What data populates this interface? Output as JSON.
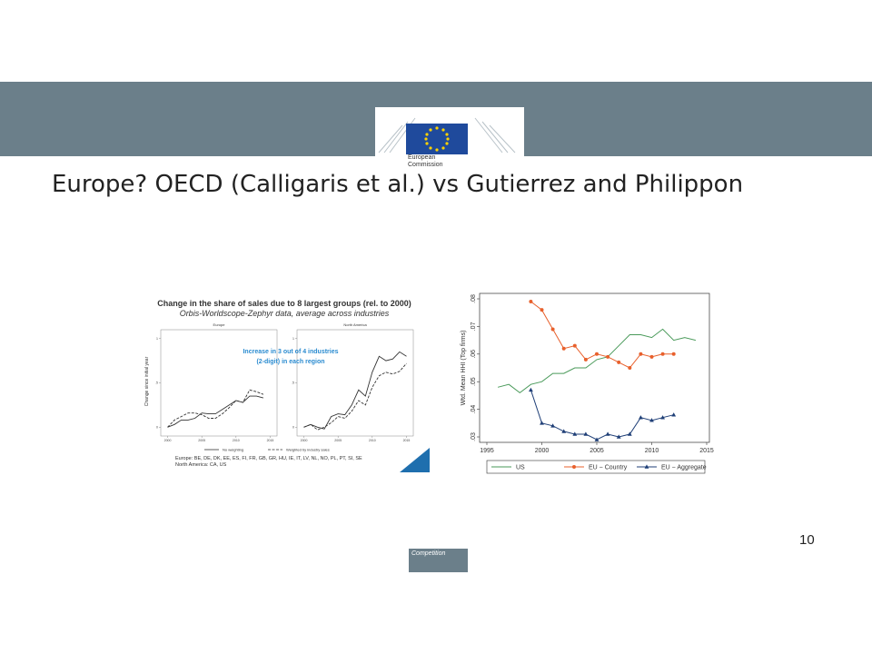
{
  "header": {
    "logo_text": "European Commission"
  },
  "title": "Europe? OECD (Calligaris et al.) vs Gutierrez and Philippon",
  "page_number": "10",
  "footer_tab": "Competition",
  "chart_data": [
    {
      "type": "line",
      "title": "Change in the share of sales due to 8 largest groups (rel. to 2000)",
      "subtitle": "Orbis-Worldscope-Zephyr data, average across industries",
      "y_label": "Change since initial year",
      "annotation": [
        "Increase in 3 out of 4 industries",
        "(2-digit) in each region"
      ],
      "xlim": [
        1999,
        2016
      ],
      "ylim": [
        -0.1,
        1.1
      ],
      "xticks": [
        2000,
        2005,
        2010,
        2015
      ],
      "yticks": [
        0,
        {
          "value": 0.5,
          "label": ".5"
        },
        1
      ],
      "legend": [
        {
          "name": "No weighting",
          "dash": false
        },
        {
          "name": "Weighted by industry sales",
          "dash": true
        }
      ],
      "color": "#333333",
      "panels": [
        {
          "title": "Europe",
          "x": [
            2000,
            2001,
            2002,
            2003,
            2004,
            2005,
            2006,
            2007,
            2008,
            2009,
            2010,
            2011,
            2012,
            2013,
            2014
          ],
          "series": [
            {
              "values": [
                0,
                0.03,
                0.08,
                0.08,
                0.1,
                0.16,
                0.15,
                0.15,
                0.2,
                0.25,
                0.3,
                0.28,
                0.35,
                0.35,
                0.33
              ]
            },
            {
              "values": [
                0,
                0.08,
                0.12,
                0.16,
                0.16,
                0.14,
                0.1,
                0.1,
                0.15,
                0.22,
                0.3,
                0.28,
                0.42,
                0.4,
                0.37
              ]
            }
          ]
        },
        {
          "title": "North America",
          "x": [
            2000,
            2001,
            2002,
            2003,
            2004,
            2005,
            2006,
            2007,
            2008,
            2009,
            2010,
            2011,
            2012,
            2013,
            2014,
            2015
          ],
          "series": [
            {
              "values": [
                0,
                0.03,
                0,
                -0.02,
                0.12,
                0.15,
                0.14,
                0.25,
                0.42,
                0.35,
                0.62,
                0.8,
                0.75,
                0.77,
                0.85,
                0.8
              ]
            },
            {
              "values": [
                0,
                0.03,
                -0.03,
                0,
                0.05,
                0.12,
                0.1,
                0.18,
                0.3,
                0.25,
                0.45,
                0.58,
                0.62,
                0.6,
                0.63,
                0.72
              ]
            }
          ]
        }
      ],
      "notes": [
        "Europe: BE, DE, DK, EE, ES, FI, FR, GB, GR, HU, IE, IT, LV, NL, NO, PL, PT, SI, SE",
        "North America: CA, US"
      ]
    },
    {
      "type": "line",
      "y_label": "Wtd. Mean HHI (Top firms)",
      "xlim": [
        1995,
        2015
      ],
      "ylim": [
        0.03,
        0.08
      ],
      "xticks": [
        1995,
        2000,
        2005,
        2010,
        2015
      ],
      "yticks": [
        {
          "value": 0.03,
          "label": ".03"
        },
        {
          "value": 0.04,
          "label": ".04"
        },
        {
          "value": 0.05,
          "label": ".05"
        },
        {
          "value": 0.06,
          "label": ".06"
        },
        {
          "value": 0.07,
          "label": ".07"
        },
        {
          "value": 0.08,
          "label": ".08"
        }
      ],
      "series": [
        {
          "name": "US",
          "color": "#4a9a5a",
          "marker": "none",
          "x": [
            1996,
            1997,
            1998,
            1999,
            2000,
            2001,
            2002,
            2003,
            2004,
            2005,
            2006,
            2007,
            2008,
            2009,
            2010,
            2011,
            2012,
            2013,
            2014
          ],
          "values": [
            0.048,
            0.049,
            0.046,
            0.049,
            0.05,
            0.053,
            0.053,
            0.055,
            0.055,
            0.058,
            0.059,
            0.063,
            0.067,
            0.067,
            0.066,
            0.069,
            0.065,
            0.066,
            0.065
          ]
        },
        {
          "name": "EU − Country",
          "color": "#e8602c",
          "marker": "circle",
          "x": [
            1999,
            2000,
            2001,
            2002,
            2003,
            2004,
            2005,
            2006,
            2007,
            2008,
            2009,
            2010,
            2011,
            2012
          ],
          "values": [
            0.079,
            0.076,
            0.069,
            0.062,
            0.063,
            0.058,
            0.06,
            0.059,
            0.057,
            0.055,
            0.06,
            0.059,
            0.06,
            0.06
          ]
        },
        {
          "name": "EU − Aggregate",
          "color": "#1f3f77",
          "marker": "triangle",
          "x": [
            1999,
            2000,
            2001,
            2002,
            2003,
            2004,
            2005,
            2006,
            2007,
            2008,
            2009,
            2010,
            2011,
            2012
          ],
          "values": [
            0.047,
            0.035,
            0.034,
            0.032,
            0.031,
            0.031,
            0.029,
            0.031,
            0.03,
            0.031,
            0.037,
            0.036,
            0.037,
            0.038
          ]
        }
      ]
    }
  ]
}
